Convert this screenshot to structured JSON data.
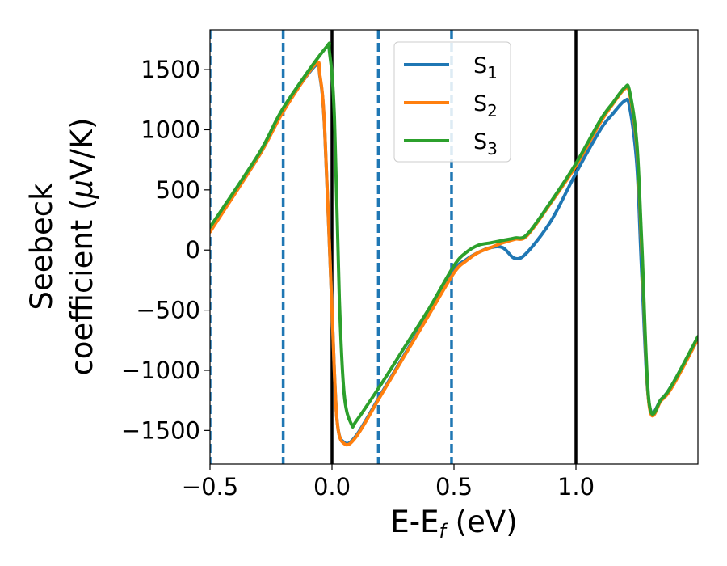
{
  "chart_data": {
    "type": "line",
    "xlabel": "E-E",
    "xlabel_sub": "f",
    "xlabel_unit": " (eV)",
    "ylabel_line1": "Seebeck",
    "ylabel_line2_prefix": "coefficient  (",
    "ylabel_mu": "μ",
    "ylabel_line2_suffix": "V/K)",
    "xlim": [
      -0.5,
      1.5
    ],
    "ylim": [
      -1780,
      1830
    ],
    "xticks": [
      -0.5,
      0.0,
      0.5,
      1.0
    ],
    "xtick_labels": [
      "−0.5",
      "0.0",
      "0.5",
      "1.0"
    ],
    "yticks": [
      -1500,
      -1000,
      -500,
      0,
      500,
      1000,
      1500
    ],
    "ytick_labels": [
      "−1500",
      "−1000",
      "−500",
      "0",
      "500",
      "1000",
      "1500"
    ],
    "vlines_solid": [
      0.0,
      1.0
    ],
    "vlines_dashed": [
      -0.5,
      -0.2,
      0.19,
      0.49
    ],
    "legend_position": "top-center",
    "series": [
      {
        "name": "S",
        "sub": "1",
        "color": "#1f77b4",
        "x": [
          -0.5,
          -0.3,
          -0.2,
          -0.07,
          -0.05,
          -0.03,
          0.0,
          0.02,
          0.05,
          0.1,
          0.2,
          0.3,
          0.4,
          0.5,
          0.55,
          0.6,
          0.65,
          0.7,
          0.75,
          0.8,
          0.9,
          1.0,
          1.1,
          1.15,
          1.2,
          1.22,
          1.25,
          1.27,
          1.3,
          1.35,
          1.4,
          1.5
        ],
        "y": [
          160,
          780,
          1160,
          1530,
          1450,
          1000,
          -500,
          -1400,
          -1600,
          -1540,
          -1200,
          -860,
          -520,
          -170,
          -80,
          -20,
          20,
          20,
          -70,
          -20,
          250,
          640,
          1000,
          1130,
          1240,
          1190,
          700,
          -200,
          -1280,
          -1240,
          -1100,
          -730
        ]
      },
      {
        "name": "S",
        "sub": "2",
        "color": "#ff7f0e",
        "x": [
          -0.5,
          -0.3,
          -0.2,
          -0.07,
          -0.05,
          -0.03,
          0.0,
          0.02,
          0.05,
          0.1,
          0.2,
          0.3,
          0.4,
          0.5,
          0.55,
          0.6,
          0.65,
          0.7,
          0.75,
          0.8,
          0.9,
          1.0,
          1.1,
          1.15,
          1.2,
          1.22,
          1.25,
          1.27,
          1.3,
          1.35,
          1.4,
          1.5
        ],
        "y": [
          150,
          780,
          1150,
          1540,
          1460,
          1010,
          -500,
          -1400,
          -1610,
          -1550,
          -1210,
          -870,
          -530,
          -190,
          -90,
          -20,
          20,
          60,
          90,
          120,
          400,
          700,
          1060,
          1210,
          1340,
          1300,
          850,
          0,
          -1290,
          -1250,
          -1120,
          -740
        ]
      },
      {
        "name": "S",
        "sub": "3",
        "color": "#2ca02c",
        "x": [
          -0.5,
          -0.3,
          -0.2,
          -0.03,
          -0.01,
          0.01,
          0.03,
          0.05,
          0.08,
          0.1,
          0.2,
          0.3,
          0.4,
          0.5,
          0.55,
          0.6,
          0.65,
          0.7,
          0.75,
          0.8,
          0.9,
          1.0,
          1.1,
          1.15,
          1.2,
          1.22,
          1.25,
          1.27,
          1.3,
          1.35,
          1.4,
          1.5
        ],
        "y": [
          190,
          800,
          1180,
          1670,
          1640,
          1100,
          -400,
          -1200,
          -1450,
          -1420,
          -1120,
          -800,
          -480,
          -130,
          -20,
          40,
          60,
          80,
          100,
          130,
          410,
          720,
          1080,
          1220,
          1350,
          1320,
          880,
          50,
          -1270,
          -1240,
          -1100,
          -720
        ]
      }
    ]
  }
}
